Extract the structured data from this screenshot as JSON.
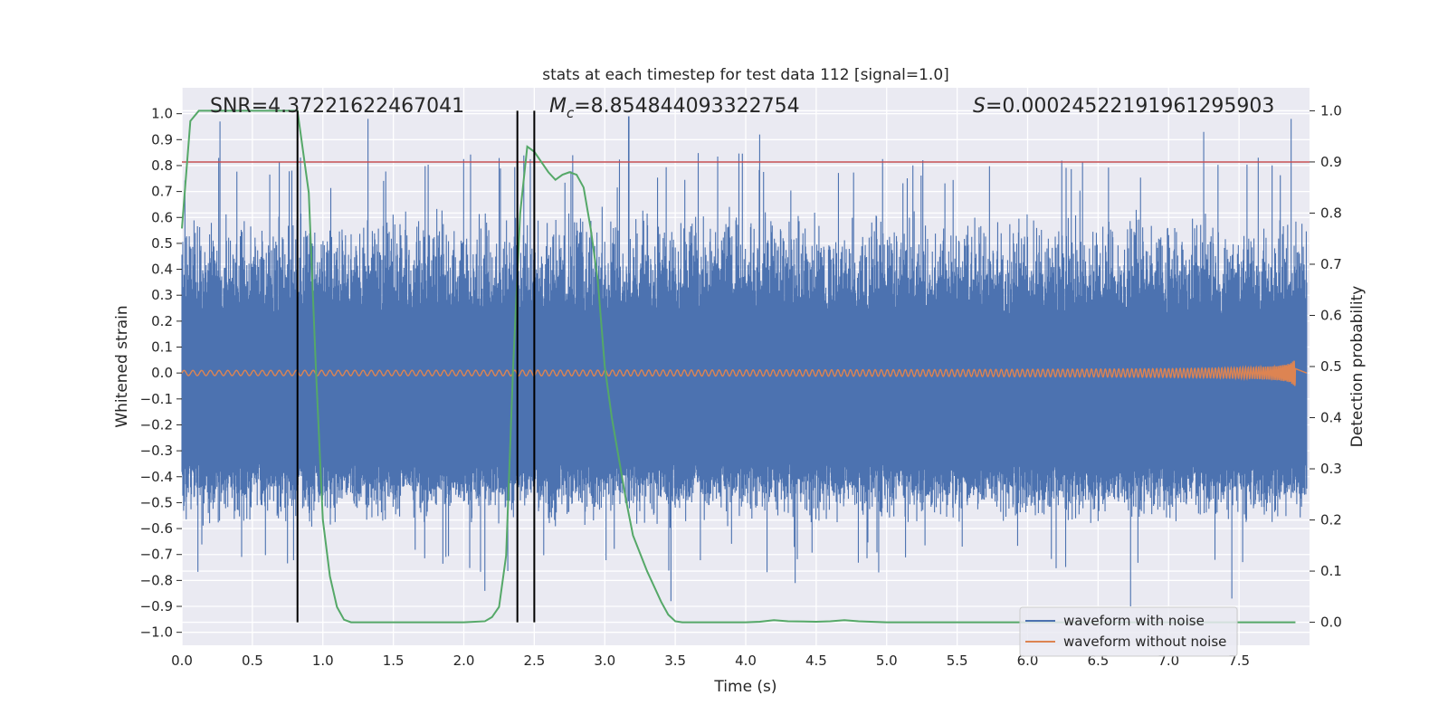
{
  "chart_data": {
    "type": "line",
    "title": "stats at each timestep for test data 112 [signal=1.0]",
    "xlabel": "Time (s)",
    "ylabel": "Whitened strain",
    "y2label": "Detection probability",
    "xlim": [
      0.0,
      8.0
    ],
    "ylim": [
      -1.05,
      1.1
    ],
    "y2lim": [
      -0.045,
      1.045
    ],
    "xticks": [
      "0.0",
      "0.5",
      "1.0",
      "1.5",
      "2.0",
      "2.5",
      "3.0",
      "3.5",
      "4.0",
      "4.5",
      "5.0",
      "5.5",
      "6.0",
      "6.5",
      "7.0",
      "7.5"
    ],
    "yticks": [
      "1.0",
      "0.9",
      "0.8",
      "0.7",
      "0.6",
      "0.5",
      "0.4",
      "0.3",
      "0.2",
      "0.1",
      "0.0",
      "−0.1",
      "−0.2",
      "−0.3",
      "−0.4",
      "−0.5",
      "−0.6",
      "−0.7",
      "−0.8",
      "−0.9",
      "−1.0"
    ],
    "y2ticks": [
      "1.0",
      "0.9",
      "0.8",
      "0.7",
      "0.6",
      "0.5",
      "0.4",
      "0.3",
      "0.2",
      "0.1",
      "0.0"
    ],
    "grid": true,
    "legend_position": "lower-right",
    "annotations": {
      "snr": "SNR=4.37221622467041",
      "mc_symbol": "M",
      "mc_sub": "c",
      "mc_value": "=8.854844093322754",
      "s_symbol": "S",
      "s_value": "=0.00024522191961295903"
    },
    "series": [
      {
        "name": "waveform with noise",
        "color": "#4c72b0",
        "description_values": {
          "core_band": [
            -0.35,
            0.23
          ],
          "typical_peak_range": [
            -0.6,
            0.65
          ],
          "spike_maxima": [
            {
              "t": 0.27,
              "y": 0.97
            },
            {
              "t": 1.32,
              "y": 0.98
            },
            {
              "t": 3.17,
              "y": 0.99
            },
            {
              "t": 4.1,
              "y": 0.92
            },
            {
              "t": 7.25,
              "y": 0.93
            },
            {
              "t": 7.87,
              "y": 0.98
            }
          ],
          "spike_minima": [
            {
              "t": 2.15,
              "y": -0.84
            },
            {
              "t": 3.47,
              "y": -0.88
            },
            {
              "t": 4.35,
              "y": -0.81
            },
            {
              "t": 6.73,
              "y": -0.9
            },
            {
              "t": 7.45,
              "y": -0.87
            }
          ]
        }
      },
      {
        "name": "waveform without noise",
        "color": "#dd8452",
        "description_values": {
          "amplitude_start": 0.01,
          "amplitude_end": 0.17,
          "end_time": 7.9,
          "frequency_start_hz": 16,
          "frequency_end_hz": 90
        }
      },
      {
        "color": "#55a868",
        "axis": "right",
        "points": [
          [
            0.0,
            0.77
          ],
          [
            0.06,
            0.98
          ],
          [
            0.12,
            1.0
          ],
          [
            0.4,
            1.0
          ],
          [
            0.6,
            1.0
          ],
          [
            0.82,
            1.0
          ],
          [
            0.9,
            0.84
          ],
          [
            0.95,
            0.5
          ],
          [
            1.0,
            0.2
          ],
          [
            1.05,
            0.09
          ],
          [
            1.1,
            0.03
          ],
          [
            1.15,
            0.005
          ],
          [
            1.2,
            0.0
          ],
          [
            2.0,
            0.0
          ],
          [
            2.15,
            0.002
          ],
          [
            2.2,
            0.01
          ],
          [
            2.25,
            0.03
          ],
          [
            2.3,
            0.13
          ],
          [
            2.35,
            0.5
          ],
          [
            2.4,
            0.8
          ],
          [
            2.45,
            0.93
          ],
          [
            2.5,
            0.92
          ],
          [
            2.55,
            0.9
          ],
          [
            2.6,
            0.88
          ],
          [
            2.65,
            0.865
          ],
          [
            2.7,
            0.875
          ],
          [
            2.75,
            0.88
          ],
          [
            2.8,
            0.875
          ],
          [
            2.85,
            0.85
          ],
          [
            2.9,
            0.77
          ],
          [
            2.95,
            0.67
          ],
          [
            3.0,
            0.5
          ],
          [
            3.05,
            0.4
          ],
          [
            3.1,
            0.32
          ],
          [
            3.15,
            0.24
          ],
          [
            3.2,
            0.17
          ],
          [
            3.3,
            0.1
          ],
          [
            3.4,
            0.04
          ],
          [
            3.45,
            0.015
          ],
          [
            3.5,
            0.002
          ],
          [
            3.55,
            0.0
          ],
          [
            4.0,
            0.0
          ],
          [
            4.1,
            0.001
          ],
          [
            4.2,
            0.004
          ],
          [
            4.3,
            0.002
          ],
          [
            4.5,
            0.001
          ],
          [
            4.6,
            0.002
          ],
          [
            4.7,
            0.004
          ],
          [
            4.8,
            0.002
          ],
          [
            5.0,
            0.0
          ],
          [
            7.9,
            0.0
          ]
        ]
      }
    ],
    "horizontal_lines": [
      {
        "axis": "right",
        "y": 0.9,
        "color": "#c44e52"
      }
    ],
    "vertical_lines": [
      {
        "x": 0.82,
        "color": "#000000"
      },
      {
        "x": 2.38,
        "color": "#000000"
      },
      {
        "x": 2.5,
        "color": "#000000"
      }
    ]
  }
}
